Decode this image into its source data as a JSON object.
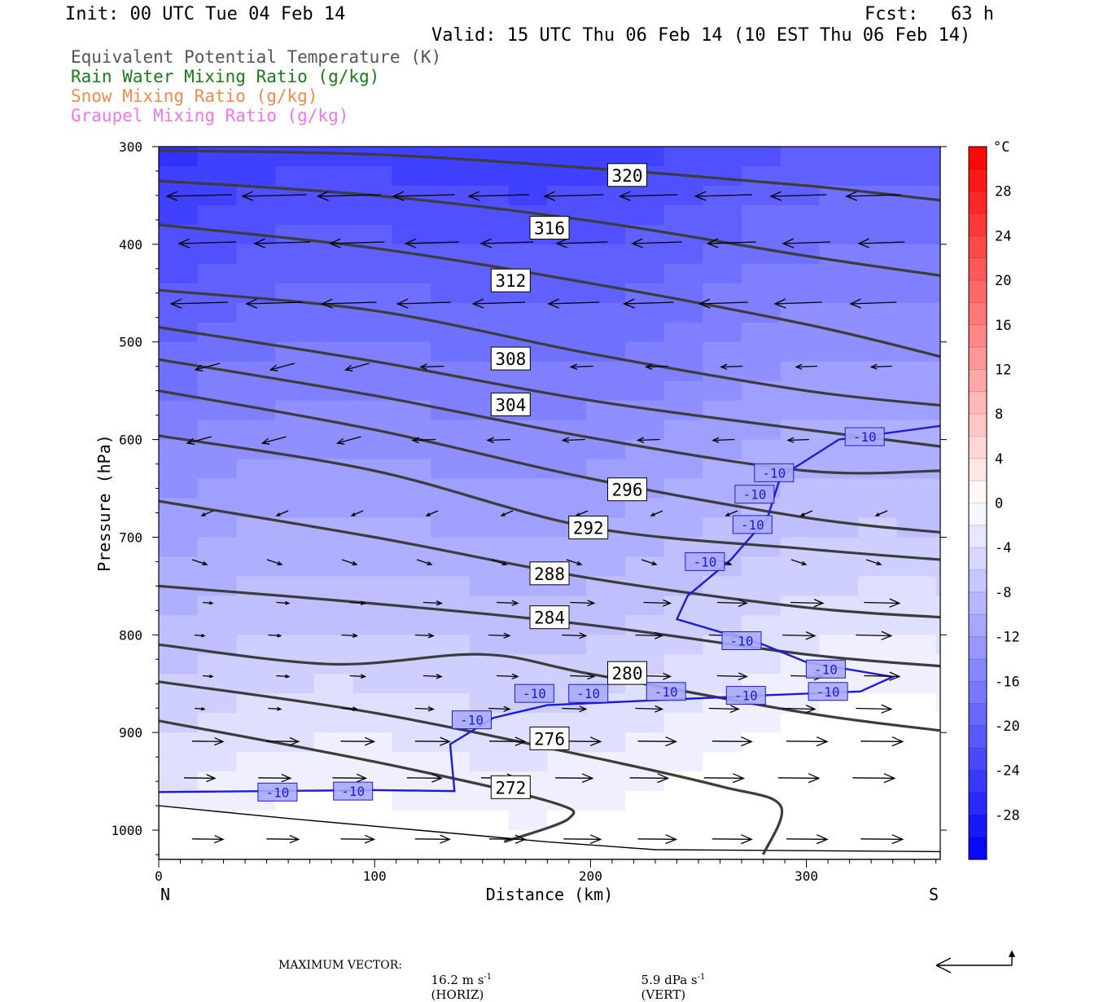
{
  "header": {
    "init": "Init: 00 UTC Tue 04 Feb 14",
    "fcst": "Fcst:   63 h",
    "valid": "Valid: 15 UTC Thu 06 Feb 14 (10 EST Thu 06 Feb 14)"
  },
  "legend": [
    {
      "label": "Equivalent Potential Temperature (K)",
      "color": "#555555"
    },
    {
      "label": "Rain Water Mixing Ratio (g/kg)",
      "color": "#1a7a1a"
    },
    {
      "label": "Snow Mixing Ratio (g/kg)",
      "color": "#f08a50"
    },
    {
      "label": "Graupel Mixing Ratio (g/kg)",
      "color": "#ee77ee"
    }
  ],
  "footer": {
    "max_vector_label": "MAXIMUM VECTOR:",
    "horiz_value": "16.2 m s",
    "horiz_exp": "-1",
    "horiz_tag": "(HORIZ)",
    "vert_value": "5.9 dPa s",
    "vert_exp": "-1",
    "vert_tag": "(VERT)"
  },
  "chart_data": {
    "type": "heatmap",
    "xlabel": "Distance (km)",
    "ylabel": "Pressure (hPa)",
    "xlim": [
      0,
      362
    ],
    "ylim": [
      1030,
      300
    ],
    "x_ticks": [
      0,
      100,
      200,
      300
    ],
    "y_ticks": [
      300,
      400,
      500,
      600,
      700,
      800,
      900,
      1000
    ],
    "left_end_label": "N",
    "right_end_label": "S",
    "colorbar": {
      "unit": "°C",
      "labels": [
        "28",
        "24",
        "20",
        "16",
        "12",
        "8",
        "4",
        "0",
        "-4",
        "-8",
        "-12",
        "-16",
        "-20",
        "-24",
        "-28"
      ],
      "label_values": [
        28,
        24,
        20,
        16,
        12,
        8,
        4,
        0,
        -4,
        -8,
        -12,
        -16,
        -20,
        -24,
        -28
      ],
      "range": [
        -32,
        32
      ],
      "interval": 2
    },
    "theta_e_contours": [
      {
        "label": "320",
        "label_at": [
          217,
          329
        ],
        "points": [
          [
            0,
            304
          ],
          [
            100,
            308
          ],
          [
            200,
            322
          ],
          [
            300,
            340
          ],
          [
            362,
            355
          ]
        ]
      },
      {
        "label": "316",
        "label_at": [
          181,
          383
        ],
        "points": [
          [
            0,
            335
          ],
          [
            100,
            350
          ],
          [
            200,
            376
          ],
          [
            300,
            412
          ],
          [
            362,
            432
          ]
        ]
      },
      {
        "label": "312",
        "label_at": [
          163,
          437
        ],
        "points": [
          [
            0,
            380
          ],
          [
            100,
            404
          ],
          [
            200,
            440
          ],
          [
            300,
            482
          ],
          [
            362,
            515
          ]
        ]
      },
      {
        "label": "308",
        "label_at": [
          163,
          517
        ],
        "points": [
          [
            0,
            447
          ],
          [
            100,
            468
          ],
          [
            200,
            512
          ],
          [
            300,
            550
          ],
          [
            362,
            565
          ]
        ]
      },
      {
        "label": "304",
        "label_at": [
          163,
          564
        ],
        "points": [
          [
            0,
            485
          ],
          [
            100,
            520
          ],
          [
            200,
            560
          ],
          [
            300,
            590
          ],
          [
            362,
            607
          ]
        ]
      },
      {
        "label": "",
        "label_at": null,
        "points": [
          [
            0,
            518
          ],
          [
            100,
            555
          ],
          [
            200,
            598
          ],
          [
            300,
            632
          ],
          [
            362,
            632
          ]
        ]
      },
      {
        "label": "296",
        "label_at": [
          217,
          651
        ],
        "points": [
          [
            0,
            550
          ],
          [
            100,
            590
          ],
          [
            200,
            640
          ],
          [
            300,
            680
          ],
          [
            362,
            695
          ]
        ]
      },
      {
        "label": "292",
        "label_at": [
          199,
          690
        ],
        "points": [
          [
            0,
            596
          ],
          [
            100,
            632
          ],
          [
            200,
            690
          ],
          [
            300,
            712
          ],
          [
            362,
            723
          ]
        ]
      },
      {
        "label": "288",
        "label_at": [
          181,
          737
        ],
        "points": [
          [
            0,
            663
          ],
          [
            100,
            700
          ],
          [
            200,
            742
          ],
          [
            300,
            772
          ],
          [
            362,
            782
          ]
        ]
      },
      {
        "label": "284",
        "label_at": [
          181,
          782
        ],
        "points": [
          [
            0,
            750
          ],
          [
            100,
            768
          ],
          [
            200,
            790
          ],
          [
            300,
            820
          ],
          [
            362,
            832
          ]
        ]
      },
      {
        "label": "280",
        "label_at": [
          217,
          839
        ],
        "points": [
          [
            0,
            810
          ],
          [
            80,
            830
          ],
          [
            150,
            820
          ],
          [
            200,
            840
          ],
          [
            300,
            880
          ],
          [
            362,
            898
          ]
        ]
      },
      {
        "label": "276",
        "label_at": [
          181,
          906
        ],
        "points": [
          [
            0,
            848
          ],
          [
            100,
            880
          ],
          [
            200,
            925
          ],
          [
            260,
            955
          ],
          [
            288,
            975
          ],
          [
            280,
            1025
          ]
        ]
      },
      {
        "label": "272",
        "label_at": [
          163,
          956
        ],
        "points": [
          [
            0,
            888
          ],
          [
            100,
            930
          ],
          [
            180,
            970
          ],
          [
            190,
            988
          ],
          [
            160,
            1012
          ]
        ]
      }
    ],
    "isotherm_minus10": {
      "label": "-10",
      "points": [
        [
          0,
          961
        ],
        [
          100,
          959
        ],
        [
          137,
          960
        ],
        [
          135,
          912
        ],
        [
          155,
          885
        ],
        [
          180,
          872
        ],
        [
          220,
          868
        ],
        [
          280,
          862
        ],
        [
          325,
          858
        ],
        [
          340,
          843
        ],
        [
          300,
          828
        ],
        [
          280,
          810
        ],
        [
          240,
          784
        ],
        [
          245,
          760
        ],
        [
          265,
          723
        ],
        [
          282,
          680
        ],
        [
          288,
          638
        ],
        [
          315,
          600
        ],
        [
          362,
          586
        ]
      ],
      "label_positions": [
        [
          55,
          961
        ],
        [
          90,
          960
        ],
        [
          145,
          887
        ],
        [
          174,
          860
        ],
        [
          199,
          860
        ],
        [
          235,
          858
        ],
        [
          272,
          862
        ],
        [
          310,
          858
        ],
        [
          309,
          835
        ],
        [
          270,
          806
        ],
        [
          253,
          725
        ],
        [
          275,
          687
        ],
        [
          276,
          656
        ],
        [
          285,
          634
        ],
        [
          327,
          597
        ]
      ]
    },
    "vector_scale": {
      "horiz_max": 16.2,
      "vert_max": 5.9,
      "horiz_units": "m s-1",
      "vert_units": "dPa s-1"
    }
  }
}
